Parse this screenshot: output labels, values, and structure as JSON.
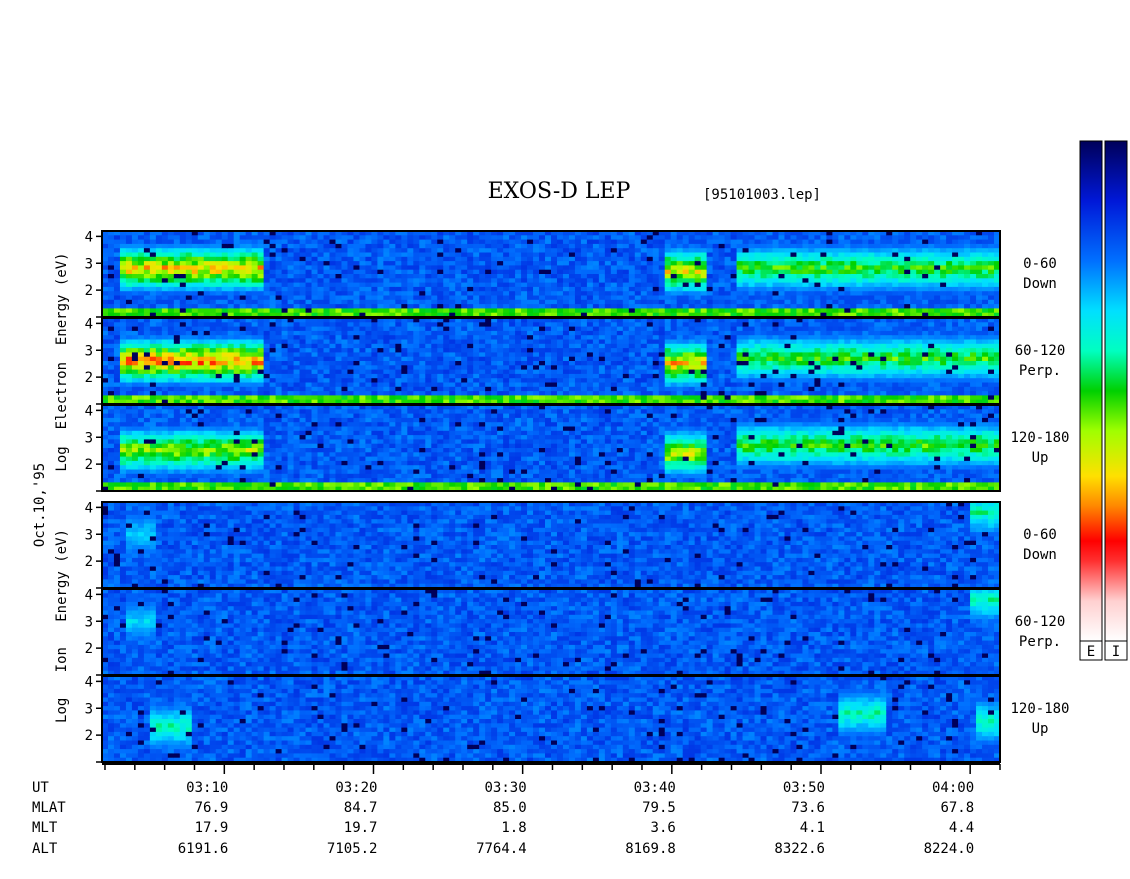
{
  "title": "EXOS-D LEP",
  "file_label": "[95101003.lep]",
  "date_label": "Oct.10,'95",
  "electron_ylabel": "Log  Electron  Energy (eV)",
  "ion_ylabel": "Log   Ion   Energy (eV)",
  "colorbar": {
    "labels": [
      "E",
      "I"
    ]
  },
  "panel_labels": [
    {
      "line1": "0-60",
      "line2": "Down"
    },
    {
      "line1": "60-120",
      "line2": "Perp."
    },
    {
      "line1": "120-180",
      "line2": "Up"
    },
    {
      "line1": "0-60",
      "line2": "Down"
    },
    {
      "line1": "60-120",
      "line2": "Perp."
    },
    {
      "line1": "120-180",
      "line2": "Up"
    }
  ],
  "ephemeris": {
    "row_labels": [
      "UT",
      "MLAT",
      "MLT",
      "ALT"
    ],
    "columns": [
      {
        "UT": "03:10",
        "MLAT": "76.9",
        "MLT": "17.9",
        "ALT": "6191.6"
      },
      {
        "UT": "03:20",
        "MLAT": "84.7",
        "MLT": "19.7",
        "ALT": "7105.2"
      },
      {
        "UT": "03:30",
        "MLAT": "85.0",
        "MLT": "1.8",
        "ALT": "7764.4"
      },
      {
        "UT": "03:40",
        "MLAT": "79.5",
        "MLT": "3.6",
        "ALT": "8169.8"
      },
      {
        "UT": "03:50",
        "MLAT": "73.6",
        "MLT": "4.1",
        "ALT": "8322.6"
      },
      {
        "UT": "04:00",
        "MLAT": "67.8",
        "MLT": "4.4",
        "ALT": "8224.0"
      }
    ]
  },
  "chart_data": {
    "type": "heatmap",
    "title": "EXOS-D LEP",
    "x_axis": {
      "label": "UT",
      "range_minutes": [
        1.8,
        62.0
      ],
      "tick_labels": [
        "03:10",
        "03:20",
        "03:30",
        "03:40",
        "03:50",
        "04:00"
      ]
    },
    "y_axis": {
      "label": "Log Energy (eV)",
      "range": [
        1,
        4.2
      ],
      "tick_labels": [
        "2",
        "3",
        "4"
      ]
    },
    "panels": [
      {
        "species": "Electron",
        "pitch_angle": "0-60",
        "direction": "Down",
        "features": [
          {
            "t_start": 3.0,
            "t_end": 12.5,
            "logE_peak": 2.8,
            "intensity": 0.72
          },
          {
            "t_start": 39.5,
            "t_end": 42.5,
            "logE_peak": 2.7,
            "intensity": 0.68
          },
          {
            "t_start": 44.5,
            "t_end": 62.0,
            "logE_peak": 2.8,
            "intensity": 0.55
          }
        ]
      },
      {
        "species": "Electron",
        "pitch_angle": "60-120",
        "direction": "Perp.",
        "features": [
          {
            "t_start": 3.0,
            "t_end": 12.5,
            "logE_peak": 2.6,
            "intensity": 0.78
          },
          {
            "t_start": 39.5,
            "t_end": 42.5,
            "logE_peak": 2.5,
            "intensity": 0.72
          },
          {
            "t_start": 44.5,
            "t_end": 62.0,
            "logE_peak": 2.7,
            "intensity": 0.55
          }
        ]
      },
      {
        "species": "Electron",
        "pitch_angle": "120-180",
        "direction": "Up",
        "features": [
          {
            "t_start": 3.0,
            "t_end": 12.5,
            "logE_peak": 2.5,
            "intensity": 0.62
          },
          {
            "t_start": 39.5,
            "t_end": 42.5,
            "logE_peak": 2.4,
            "intensity": 0.65
          },
          {
            "t_start": 44.5,
            "t_end": 62.0,
            "logE_peak": 2.7,
            "intensity": 0.55
          }
        ]
      },
      {
        "species": "Ion",
        "pitch_angle": "0-60",
        "direction": "Down",
        "features": [
          {
            "t_start": 3.5,
            "t_end": 5.5,
            "logE_peak": 3.0,
            "intensity": 0.35
          },
          {
            "t_start": 60.0,
            "t_end": 62.0,
            "logE_peak": 3.8,
            "intensity": 0.45
          }
        ]
      },
      {
        "species": "Ion",
        "pitch_angle": "60-120",
        "direction": "Perp.",
        "features": [
          {
            "t_start": 3.5,
            "t_end": 5.5,
            "logE_peak": 3.0,
            "intensity": 0.35
          },
          {
            "t_start": 60.0,
            "t_end": 62.0,
            "logE_peak": 3.8,
            "intensity": 0.45
          }
        ]
      },
      {
        "species": "Ion",
        "pitch_angle": "120-180",
        "direction": "Up",
        "features": [
          {
            "t_start": 5.0,
            "t_end": 8.0,
            "logE_peak": 2.3,
            "intensity": 0.45
          },
          {
            "t_start": 51.0,
            "t_end": 54.5,
            "logE_peak": 2.8,
            "intensity": 0.45
          },
          {
            "t_start": 60.5,
            "t_end": 62.0,
            "logE_peak": 2.5,
            "intensity": 0.45
          }
        ]
      }
    ]
  }
}
